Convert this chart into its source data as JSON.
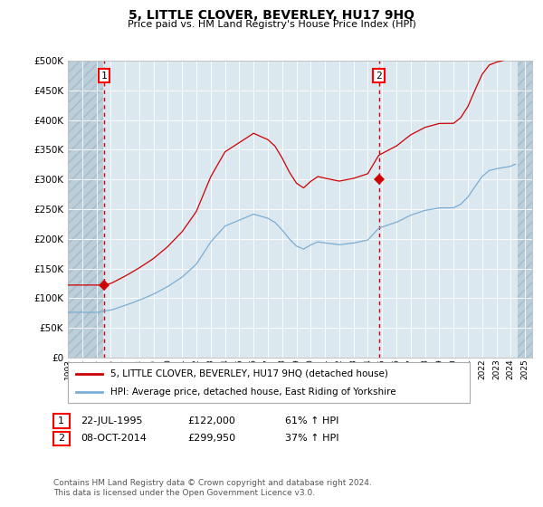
{
  "title": "5, LITTLE CLOVER, BEVERLEY, HU17 9HQ",
  "subtitle": "Price paid vs. HM Land Registry's House Price Index (HPI)",
  "ylim": [
    0,
    500000
  ],
  "yticks": [
    0,
    50000,
    100000,
    150000,
    200000,
    250000,
    300000,
    350000,
    400000,
    450000,
    500000
  ],
  "xlim_start": 1993.0,
  "xlim_end": 2025.5,
  "xticks": [
    1993,
    1994,
    1995,
    1996,
    1997,
    1998,
    1999,
    2000,
    2001,
    2002,
    2003,
    2004,
    2005,
    2006,
    2007,
    2008,
    2009,
    2010,
    2011,
    2012,
    2013,
    2014,
    2015,
    2016,
    2017,
    2018,
    2019,
    2020,
    2021,
    2022,
    2023,
    2024,
    2025
  ],
  "bg_color": "#dce8f0",
  "hatch_color": "#b8ccd8",
  "line_color_property": "#cc0000",
  "line_color_hpi": "#7aaed4",
  "marker_color": "#cc0000",
  "dashed_line_color": "#cc0000",
  "transaction1_x": 1995.55,
  "transaction1_y": 122000,
  "transaction1_label": "1",
  "transaction1_date": "22-JUL-1995",
  "transaction1_price": "£122,000",
  "transaction1_hpi": "61% ↑ HPI",
  "transaction2_x": 2014.77,
  "transaction2_y": 299950,
  "transaction2_label": "2",
  "transaction2_date": "08-OCT-2014",
  "transaction2_price": "£299,950",
  "transaction2_hpi": "37% ↑ HPI",
  "legend_property": "5, LITTLE CLOVER, BEVERLEY, HU17 9HQ (detached house)",
  "legend_hpi": "HPI: Average price, detached house, East Riding of Yorkshire",
  "footer": "Contains HM Land Registry data © Crown copyright and database right 2024.\nThis data is licensed under the Open Government Licence v3.0.",
  "hatch_left_end": 1995.5,
  "hatch_right_start": 2024.5
}
